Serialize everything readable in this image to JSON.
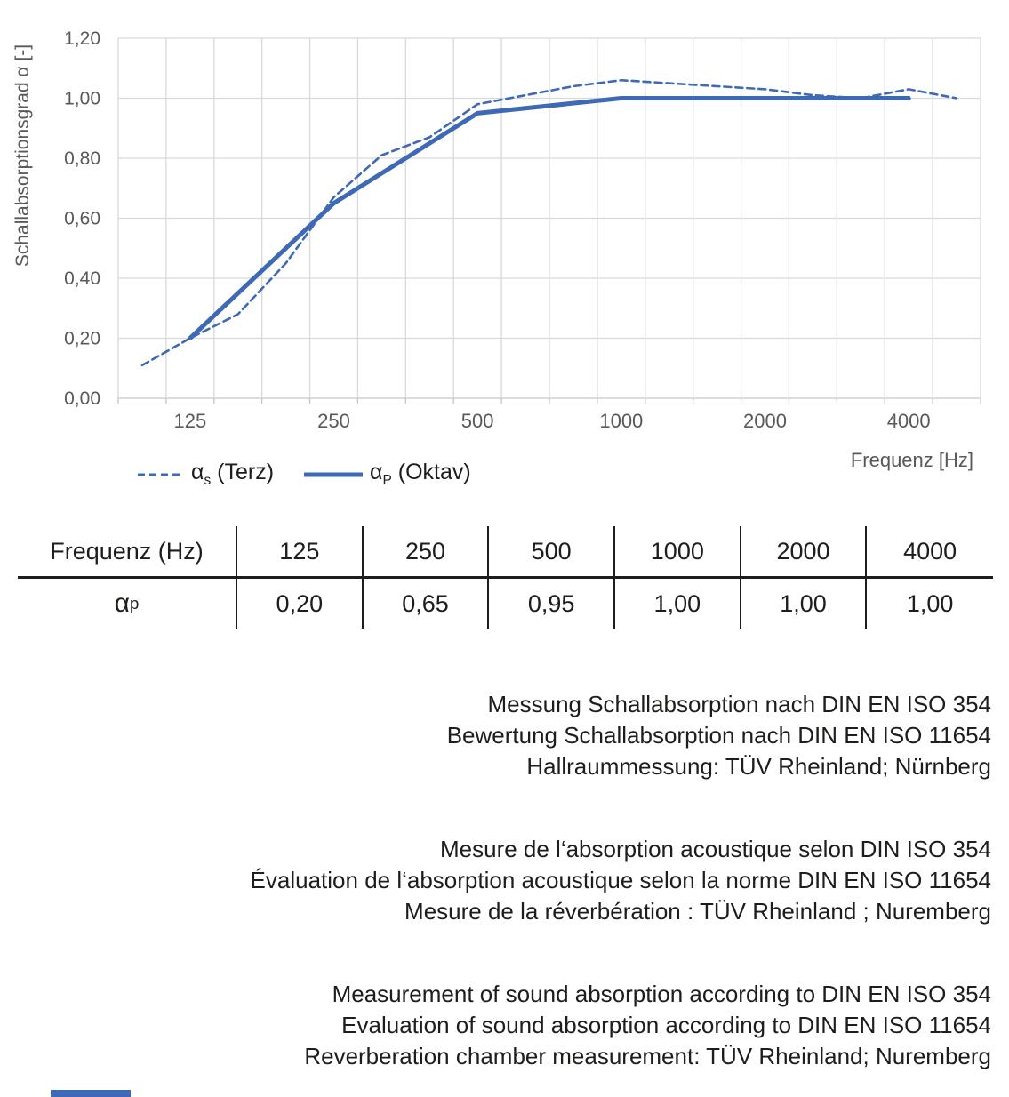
{
  "colors": {
    "accent_blue": "#3E6AB5",
    "gridline": "#D9D9D9",
    "axis_line": "#C6C6C6",
    "axis_text": "#595959",
    "text": "#1D1D1B"
  },
  "chart_data": {
    "type": "line",
    "title": "",
    "xlabel": "Frequenz [Hz]",
    "ylabel": "Schallabsorptionsgrad α [-]",
    "ylim": [
      0,
      1.2
    ],
    "y_tick_step": 0.2,
    "y_tick_labels": [
      "0,00",
      "0,20",
      "0,40",
      "0,60",
      "0,80",
      "1,00",
      "1,20"
    ],
    "grid": true,
    "x_scale": "third-octave band categories (log-spaced)",
    "bands": [
      100,
      125,
      160,
      200,
      250,
      315,
      400,
      500,
      630,
      800,
      1000,
      1250,
      1600,
      2000,
      2500,
      3150,
      4000,
      5000
    ],
    "x_tick_frequencies": [
      125,
      250,
      500,
      1000,
      2000,
      4000
    ],
    "x_tick_labels": [
      "125",
      "250",
      "500",
      "1000",
      "2000",
      "4000"
    ],
    "legend_position": "bottom-left",
    "series": [
      {
        "name": "αs (Terz)",
        "line_style": "dashed",
        "x": [
          100,
          125,
          160,
          200,
          250,
          315,
          400,
          500,
          630,
          800,
          1000,
          1250,
          1600,
          2000,
          2500,
          3150,
          4000,
          5000
        ],
        "values": [
          0.11,
          0.2,
          0.28,
          0.45,
          0.67,
          0.81,
          0.87,
          0.98,
          1.01,
          1.04,
          1.06,
          1.05,
          1.04,
          1.03,
          1.01,
          1.0,
          1.03,
          1.0
        ]
      },
      {
        "name": "αP (Oktav)",
        "line_style": "solid",
        "x": [
          125,
          250,
          500,
          1000,
          2000,
          4000
        ],
        "values": [
          0.2,
          0.65,
          0.95,
          1.0,
          1.0,
          1.0
        ]
      }
    ]
  },
  "legend": {
    "terz": {
      "symbol": "α",
      "subscript": "s",
      "text": " (Terz)"
    },
    "oktav": {
      "symbol": "α",
      "subscript": "P",
      "text": " (Oktav)"
    }
  },
  "table": {
    "header": [
      "Frequenz (Hz)",
      "125",
      "250",
      "500",
      "1000",
      "2000",
      "4000"
    ],
    "row_label": {
      "symbol": "α",
      "subscript": "p"
    },
    "values": [
      "0,20",
      "0,65",
      "0,95",
      "1,00",
      "1,00",
      "1,00"
    ]
  },
  "notes": {
    "german": [
      "Messung Schallabsorption nach DIN EN ISO 354",
      "Bewertung Schallabsorption nach DIN EN ISO 11654",
      "Hallraummessung: TÜV Rheinland; Nürnberg"
    ],
    "french": [
      "Mesure de l‘absorption acoustique selon DIN ISO 354",
      "Évaluation de l‘absorption acoustique selon la norme DIN EN ISO 11654",
      "Mesure de la réverbération : TÜV Rheinland ; Nuremberg"
    ],
    "english": [
      "Measurement of sound absorption according to DIN EN ISO 354",
      "Evaluation of sound absorption according to DIN EN ISO 11654",
      "Reverberation chamber measurement: TÜV Rheinland; Nuremberg"
    ]
  }
}
